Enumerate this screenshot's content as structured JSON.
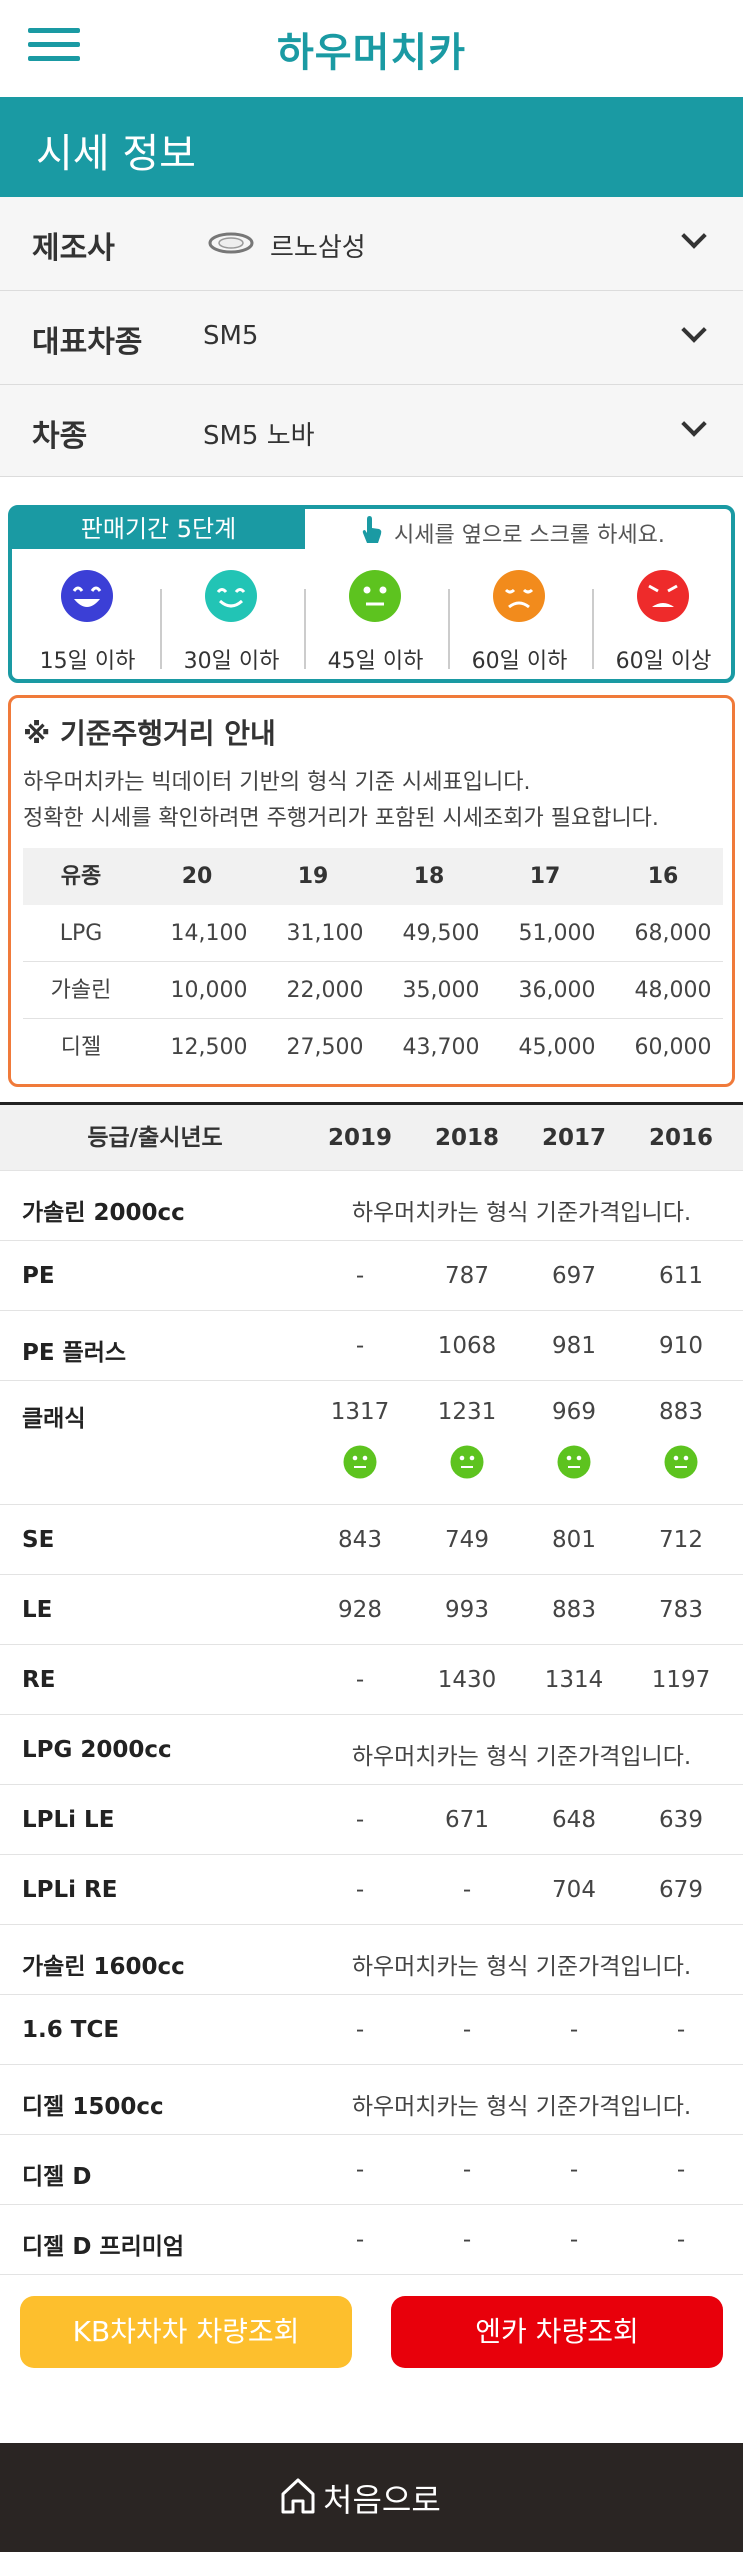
{
  "header": {
    "logo": "하우머치카"
  },
  "page": {
    "title": "시세 정보"
  },
  "filters": [
    {
      "label": "제조사",
      "value": "르노삼성"
    },
    {
      "label": "대표차종",
      "value": "SM5"
    },
    {
      "label": "차종",
      "value": "SM5 노바"
    }
  ],
  "period": {
    "tab": "판매기간 5단계",
    "hint": "시세를 옆으로 스크롤 하세요.",
    "levels": [
      {
        "label": "15일 이하",
        "color": "#3b3fd6",
        "mood": "very-happy"
      },
      {
        "label": "30일 이하",
        "color": "#22c4b5",
        "mood": "happy"
      },
      {
        "label": "45일 이하",
        "color": "#5dc31f",
        "mood": "neutral"
      },
      {
        "label": "60일 이하",
        "color": "#f28b1c",
        "mood": "sad"
      },
      {
        "label": "60일 이상",
        "color": "#ee2b2b",
        "mood": "angry"
      }
    ]
  },
  "mileage": {
    "title": "※ 기준주행거리 안내",
    "desc1": "하우머치카는 빅데이터 기반의 형식 기준 시세표입니다.",
    "desc2": "정확한 시세를 확인하려면 주행거리가 포함된 시세조회가 필요합니다.",
    "headers": [
      "유종",
      "20",
      "19",
      "18",
      "17",
      "16"
    ],
    "rows": [
      [
        "LPG",
        "14,100",
        "31,100",
        "49,500",
        "51,000",
        "68,000"
      ],
      [
        "가솔린",
        "10,000",
        "22,000",
        "35,000",
        "36,000",
        "48,000"
      ],
      [
        "디젤",
        "12,500",
        "27,500",
        "43,700",
        "45,000",
        "60,000"
      ]
    ]
  },
  "prices": {
    "headers": [
      "등급/출시년도",
      "2019",
      "2018",
      "2017",
      "2016"
    ],
    "note": "하우머치카는 형식 기준가격입니다.",
    "rows": [
      {
        "name": "가솔린 2000cc",
        "group": true
      },
      {
        "name": "PE",
        "values": [
          "-",
          "787",
          "697",
          "611"
        ]
      },
      {
        "name": "PE 플러스",
        "values": [
          "-",
          "1068",
          "981",
          "910"
        ]
      },
      {
        "name": "클래식",
        "values": [
          "1317",
          "1231",
          "969",
          "883"
        ],
        "faces": true
      },
      {
        "name": "SE",
        "values": [
          "843",
          "749",
          "801",
          "712"
        ]
      },
      {
        "name": "LE",
        "values": [
          "928",
          "993",
          "883",
          "783"
        ]
      },
      {
        "name": "RE",
        "values": [
          "-",
          "1430",
          "1314",
          "1197"
        ]
      },
      {
        "name": "LPG 2000cc",
        "group": true
      },
      {
        "name": "LPLi LE",
        "values": [
          "-",
          "671",
          "648",
          "639"
        ]
      },
      {
        "name": "LPLi RE",
        "values": [
          "-",
          "-",
          "704",
          "679"
        ]
      },
      {
        "name": "가솔린 1600cc",
        "group": true
      },
      {
        "name": "1.6 TCE",
        "values": [
          "-",
          "-",
          "-",
          "-"
        ]
      },
      {
        "name": "디젤 1500cc",
        "group": true
      },
      {
        "name": "디젤 D",
        "values": [
          "-",
          "-",
          "-",
          "-"
        ]
      },
      {
        "name": "디젤 D 프리미엄",
        "values": [
          "-",
          "-",
          "-",
          "-"
        ]
      }
    ]
  },
  "buttons": {
    "kb": "KB차차차 차량조회",
    "encar": "엔카 차량조회",
    "kb_color": "#fdbf2d",
    "encar_color": "#e8000b"
  },
  "footer": {
    "home": "처음으로"
  },
  "colors": {
    "brand": "#1a9aa3",
    "accent": "#f07a3a"
  }
}
